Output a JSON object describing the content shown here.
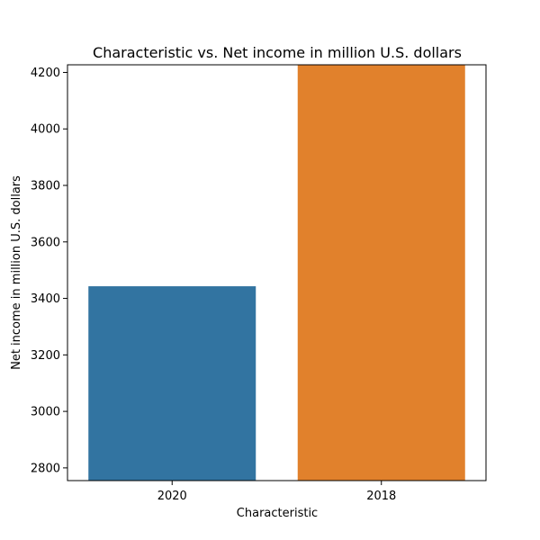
{
  "chart_data": {
    "type": "bar",
    "title": "Characteristic vs. Net income in million U.S. dollars",
    "xlabel": "Characteristic",
    "ylabel": "Net income in million U.S. dollars",
    "categories": [
      "2020",
      "2018"
    ],
    "values": [
      3443,
      4227
    ],
    "colors": [
      "#3274a1",
      "#e1812c"
    ],
    "ylim": [
      2755,
      4227
    ],
    "yticks": [
      2800,
      3000,
      3200,
      3400,
      3600,
      3800,
      4000,
      4200
    ],
    "grid": false,
    "legend": "none"
  }
}
